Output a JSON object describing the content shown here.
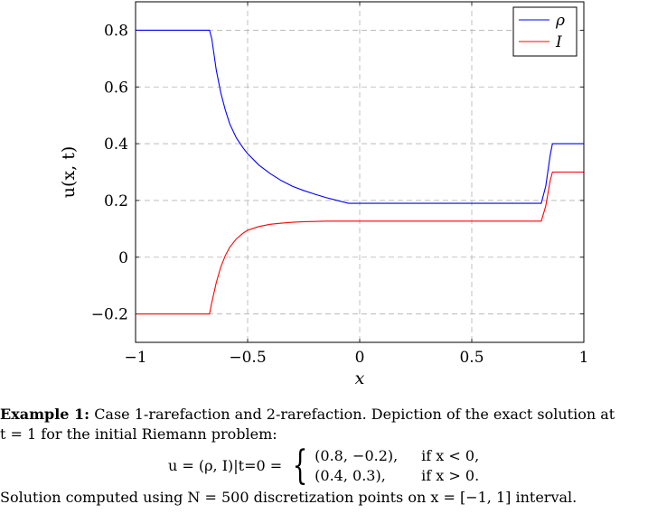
{
  "chart_data": {
    "type": "line",
    "xlabel": "x",
    "ylabel": "u(x, t)",
    "xlim": [
      -1,
      1
    ],
    "ylim": [
      -0.3,
      0.9
    ],
    "xticks": [
      -1,
      -0.5,
      0,
      0.5,
      1
    ],
    "xtick_labels": [
      "−1",
      "−0.5",
      "0",
      "0.5",
      "1"
    ],
    "yticks": [
      -0.2,
      0,
      0.2,
      0.4,
      0.6,
      0.8
    ],
    "ytick_labels": [
      "−0.2",
      "0",
      "0.2",
      "0.4",
      "0.6",
      "0.8"
    ],
    "grid": true,
    "legend_position": "top-right",
    "series": [
      {
        "name": "ρ",
        "color": "#0000ff",
        "x": [
          -1,
          -0.67,
          -0.66,
          -0.64,
          -0.62,
          -0.6,
          -0.58,
          -0.55,
          -0.52,
          -0.5,
          -0.45,
          -0.4,
          -0.35,
          -0.3,
          -0.25,
          -0.2,
          -0.15,
          -0.1,
          -0.05,
          0,
          0.2,
          0.4,
          0.6,
          0.81,
          0.83,
          0.85,
          0.86,
          0.9,
          1
        ],
        "y": [
          0.8,
          0.8,
          0.77,
          0.66,
          0.58,
          0.52,
          0.47,
          0.42,
          0.385,
          0.365,
          0.325,
          0.295,
          0.27,
          0.25,
          0.235,
          0.222,
          0.21,
          0.2,
          0.19,
          0.19,
          0.19,
          0.19,
          0.19,
          0.19,
          0.25,
          0.36,
          0.4,
          0.4,
          0.4
        ]
      },
      {
        "name": "I",
        "color": "#ff0000",
        "x": [
          -1,
          -0.67,
          -0.66,
          -0.64,
          -0.62,
          -0.6,
          -0.58,
          -0.55,
          -0.52,
          -0.5,
          -0.45,
          -0.4,
          -0.35,
          -0.3,
          -0.25,
          -0.2,
          -0.15,
          -0.1,
          -0.05,
          0,
          0.2,
          0.4,
          0.6,
          0.81,
          0.83,
          0.85,
          0.86,
          0.9,
          1
        ],
        "y": [
          -0.2,
          -0.2,
          -0.16,
          -0.09,
          -0.035,
          0.005,
          0.035,
          0.065,
          0.085,
          0.095,
          0.108,
          0.116,
          0.12,
          0.123,
          0.125,
          0.126,
          0.127,
          0.127,
          0.127,
          0.127,
          0.127,
          0.127,
          0.127,
          0.127,
          0.18,
          0.27,
          0.3,
          0.3,
          0.3
        ]
      }
    ]
  },
  "caption": {
    "example_label": "Example 1:",
    "line1_rest": "Case 1-rarefaction and 2-rarefaction. Depiction of the exact solution at",
    "line2": "t = 1 for the initial Riemann problem:",
    "formula_lhs": "u = (ρ, I)|t=0 =",
    "case1_value": "(0.8, −0.2),",
    "case1_condition": "if x < 0,",
    "case2_value": "(0.4, 0.3),",
    "case2_condition": "if x > 0.",
    "line_last": "Solution computed using N = 500 discretization points on x = [−1, 1] interval."
  }
}
